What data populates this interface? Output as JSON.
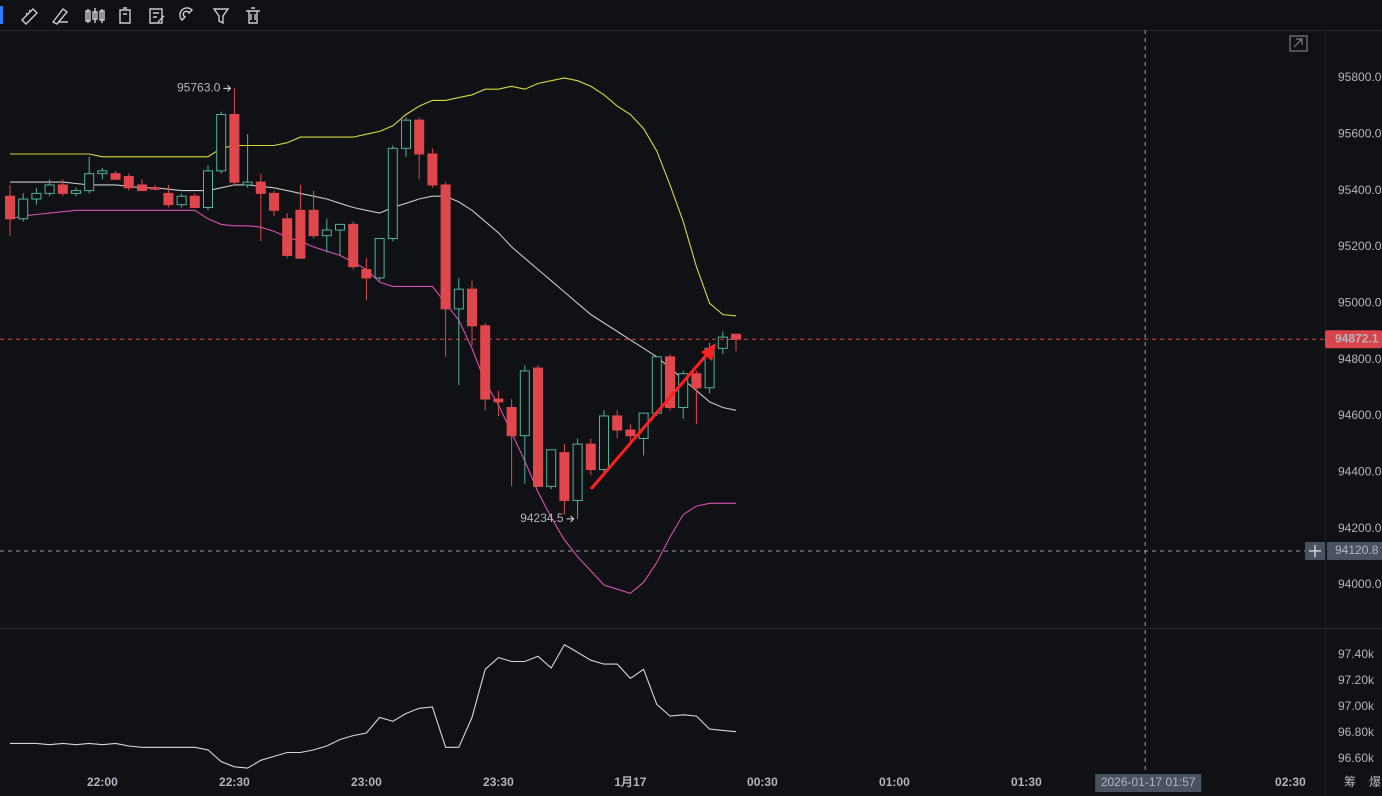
{
  "chart_data": [
    {
      "type": "candlestick",
      "x": [
        "21:39",
        "21:42",
        "21:45",
        "21:48",
        "21:51",
        "21:54",
        "21:57",
        "22:00",
        "22:03",
        "22:06",
        "22:09",
        "22:12",
        "22:15",
        "22:18",
        "22:21",
        "22:24",
        "22:27",
        "22:30",
        "22:33",
        "22:36",
        "22:39",
        "22:42",
        "22:45",
        "22:48",
        "22:51",
        "22:54",
        "22:57",
        "23:00",
        "23:03",
        "23:06",
        "23:09",
        "23:12",
        "23:15",
        "23:18",
        "23:21",
        "23:24",
        "23:27",
        "23:30",
        "23:33",
        "23:36",
        "23:39",
        "23:42",
        "23:45",
        "23:48",
        "23:51",
        "23:54",
        "23:57",
        "00:00",
        "00:03",
        "00:06",
        "00:09",
        "00:12",
        "00:15",
        "00:18",
        "00:21",
        "00:24"
      ],
      "open": [
        95380,
        95300,
        95370,
        95390,
        95420,
        95390,
        95400,
        95460,
        95460,
        95450,
        95420,
        95410,
        95390,
        95350,
        95380,
        95340,
        95470,
        95670,
        95420,
        95430,
        95390,
        95300,
        95330,
        95330,
        95240,
        95260,
        95280,
        95120,
        95090,
        95230,
        95550,
        95650,
        95530,
        95420,
        94980,
        95050,
        94920,
        94660,
        94630,
        94530,
        94770,
        94350,
        94470,
        94300,
        94500,
        94410,
        94600,
        94550,
        94520,
        94610,
        94810,
        94630,
        94750,
        94700,
        94840,
        94890
      ],
      "high": [
        95420,
        95390,
        95410,
        95440,
        95440,
        95410,
        95520,
        95480,
        95470,
        95460,
        95440,
        95420,
        95420,
        95390,
        95390,
        95490,
        95680,
        95763,
        95600,
        95460,
        95400,
        95320,
        95420,
        95400,
        95300,
        95280,
        95290,
        95160,
        95230,
        95560,
        95660,
        95660,
        95550,
        95430,
        95090,
        95080,
        94930,
        94690,
        94660,
        94780,
        94780,
        94480,
        94500,
        94520,
        94520,
        94620,
        94620,
        94570,
        94610,
        94810,
        94820,
        94760,
        94760,
        94860,
        94900,
        94890
      ],
      "low": [
        95240,
        95290,
        95350,
        95380,
        95380,
        95380,
        95390,
        95440,
        95440,
        95400,
        95400,
        95400,
        95340,
        95340,
        95340,
        95330,
        95460,
        95420,
        95410,
        95220,
        95310,
        95160,
        95160,
        95230,
        95180,
        95170,
        95120,
        95010,
        95080,
        95220,
        95520,
        95440,
        95410,
        94810,
        94710,
        94850,
        94620,
        94600,
        94350,
        94360,
        94350,
        94340,
        94250,
        94234.5,
        94390,
        94400,
        94520,
        94510,
        94460,
        94600,
        94620,
        94590,
        94570,
        94680,
        94820,
        94830
      ],
      "close": [
        95300,
        95370,
        95390,
        95420,
        95390,
        95400,
        95460,
        95470,
        95440,
        95410,
        95400,
        95405,
        95350,
        95380,
        95340,
        95470,
        95670,
        95430,
        95430,
        95390,
        95330,
        95170,
        95160,
        95240,
        95260,
        95280,
        95130,
        95090,
        95230,
        95550,
        95650,
        95530,
        95420,
        94980,
        95050,
        94920,
        94660,
        94650,
        94530,
        94760,
        94350,
        94480,
        94300,
        94500,
        94410,
        94600,
        94550,
        94530,
        94610,
        94810,
        94630,
        94750,
        94700,
        94840,
        94880,
        94872.1
      ],
      "up_color": "#4fb39b",
      "down_color": "#e0474c",
      "bands": [
        {
          "color": "#d8d83a",
          "values": [
            95530,
            95530,
            95530,
            95530,
            95530,
            95530,
            95530,
            95520,
            95520,
            95520,
            95520,
            95520,
            95520,
            95520,
            95520,
            95520,
            95550,
            95560,
            95560,
            95560,
            95560,
            95570,
            95590,
            95590,
            95590,
            95590,
            95590,
            95600,
            95610,
            95630,
            95670,
            95700,
            95720,
            95720,
            95730,
            95740,
            95760,
            95760,
            95770,
            95760,
            95780,
            95790,
            95800,
            95790,
            95770,
            95740,
            95700,
            95670,
            95620,
            95540,
            95420,
            95290,
            95130,
            95000,
            94960,
            94955
          ]
        },
        {
          "color": "#c9c9c9",
          "values": [
            95430,
            95430,
            95430,
            95430,
            95430,
            95425,
            95420,
            95420,
            95420,
            95415,
            95410,
            95410,
            95405,
            95400,
            95400,
            95400,
            95410,
            95420,
            95420,
            95415,
            95410,
            95400,
            95390,
            95380,
            95370,
            95355,
            95340,
            95330,
            95320,
            95340,
            95355,
            95370,
            95380,
            95380,
            95360,
            95330,
            95290,
            95250,
            95200,
            95160,
            95120,
            95080,
            95040,
            95000,
            94960,
            94930,
            94900,
            94870,
            94840,
            94810,
            94770,
            94730,
            94690,
            94650,
            94630,
            94620
          ]
        },
        {
          "color": "#d94fb4",
          "values": [
            95300,
            95310,
            95315,
            95320,
            95325,
            95330,
            95330,
            95330,
            95330,
            95330,
            95330,
            95330,
            95330,
            95330,
            95330,
            95300,
            95280,
            95275,
            95275,
            95270,
            95255,
            95235,
            95220,
            95200,
            95185,
            95170,
            95145,
            95120,
            95075,
            95060,
            95060,
            95060,
            95060,
            95000,
            94940,
            94840,
            94720,
            94640,
            94540,
            94440,
            94330,
            94240,
            94160,
            94100,
            94050,
            94000,
            93985,
            93970,
            94010,
            94080,
            94170,
            94250,
            94280,
            94290,
            94290,
            94290
          ]
        }
      ],
      "marker_labels": [
        {
          "x": "22:30",
          "value": 95763,
          "label": "95763.0"
        },
        {
          "x": "23:48",
          "value": 94234.5,
          "label": "94234.5"
        }
      ],
      "last_price": 94872.1,
      "crosshair": {
        "y": 94120.8,
        "x_label": "2026-01-17 01:57"
      },
      "ylim": [
        93858,
        95970
      ],
      "yticks": [
        {
          "value": 94000,
          "label": "94000.0"
        },
        {
          "value": 94200,
          "label": "94200.0"
        },
        {
          "value": 94400,
          "label": "94400.0"
        },
        {
          "value": 94600,
          "label": "94600.0"
        },
        {
          "value": 94800,
          "label": "94800.0"
        },
        {
          "value": 95000,
          "label": "95000.0"
        },
        {
          "value": 95200,
          "label": "95200.0"
        },
        {
          "value": 95400,
          "label": "95400.0"
        },
        {
          "value": 95600,
          "label": "95600.0"
        },
        {
          "value": 95800,
          "label": "95800.0"
        }
      ],
      "xticks": [
        "22:00",
        "22:30",
        "23:00",
        "23:30",
        {
          "value": "00:00",
          "label": "1月17"
        },
        "00:30",
        "01:00",
        "01:30",
        "02:30"
      ],
      "grid": true,
      "corner_labels": [
        "筹",
        "爆"
      ]
    },
    {
      "type": "line",
      "color": "#d6d6d6",
      "values": [
        96720,
        96720,
        96720,
        96710,
        96720,
        96710,
        96720,
        96710,
        96720,
        96700,
        96690,
        96690,
        96690,
        96690,
        96690,
        96670,
        96580,
        96540,
        96530,
        96590,
        96620,
        96650,
        96650,
        96670,
        96700,
        96750,
        96780,
        96800,
        96920,
        96890,
        96950,
        96990,
        97000,
        96690,
        96690,
        96920,
        97290,
        97380,
        97350,
        97350,
        97390,
        97300,
        97480,
        97420,
        97360,
        97330,
        97330,
        97220,
        97290,
        97020,
        96930,
        96940,
        96930,
        96830,
        96820,
        96810
      ],
      "ylim": [
        96515,
        97577
      ],
      "yticks": [
        {
          "value": 96600,
          "label": "96.60k"
        },
        {
          "value": 96800,
          "label": "96.80k"
        },
        {
          "value": 97000,
          "label": "97.00k"
        },
        {
          "value": 97200,
          "label": "97.20k"
        },
        {
          "value": 97400,
          "label": "97.40k"
        }
      ],
      "grid": true
    }
  ]
}
